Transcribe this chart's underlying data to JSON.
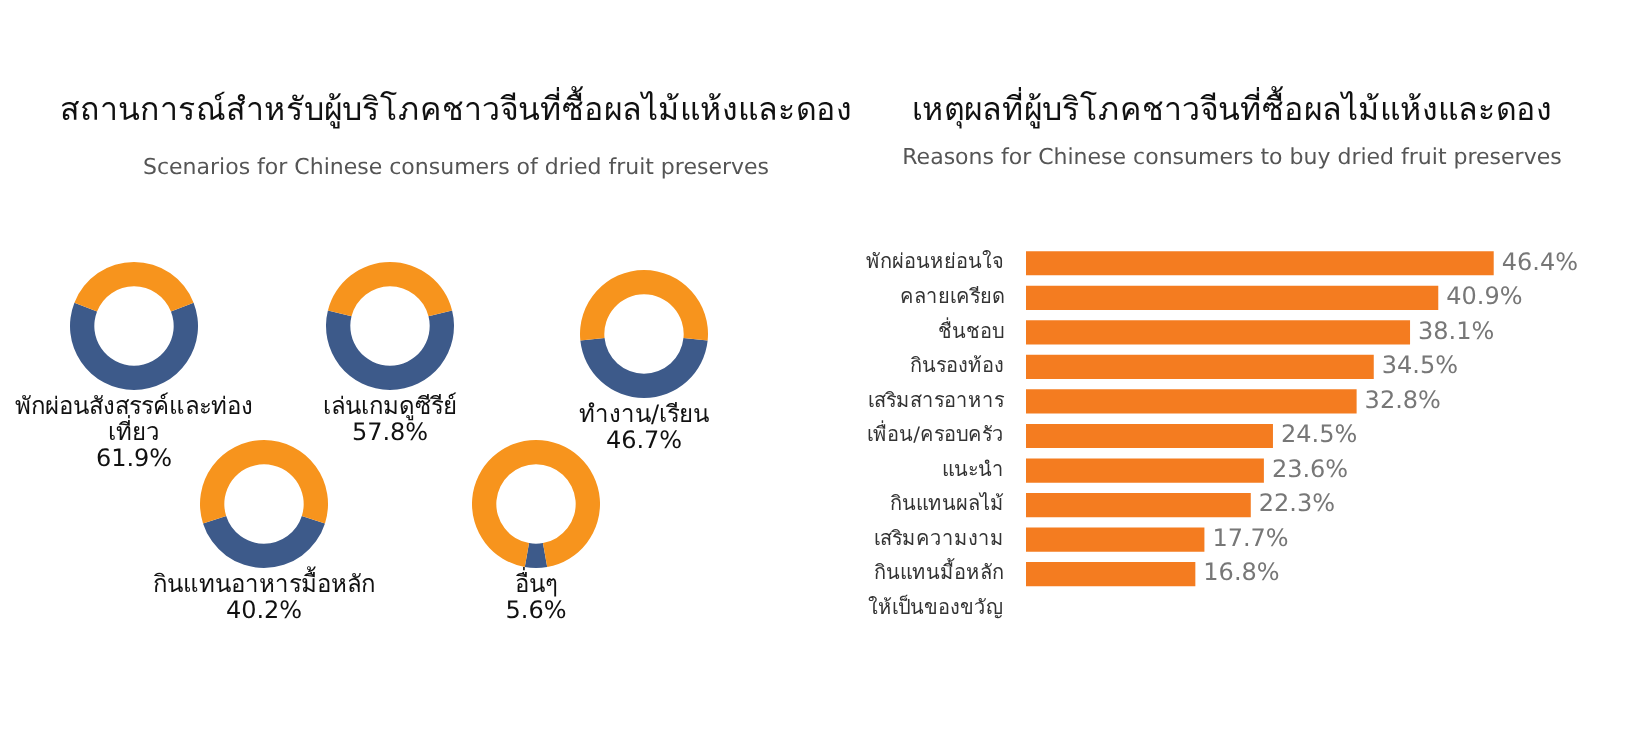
{
  "chart_data": [
    {
      "type": "other",
      "title": "สถานการณ์สำหรับผู้บริโภคชาวจีนที่ซื้อผลไม้แห้งและดอง",
      "subtitle": "Scenarios for Chinese consumers of dried fruit preserves"
    },
    {
      "type": "donut",
      "title": "พักผ่อนสังสรรค์และท่องเที่ยว",
      "categories": [
        null,
        null
      ],
      "values": [
        61.9,
        38.1
      ],
      "colors": [
        "#3d5a8a",
        "#f7941d"
      ],
      "value_labels": [
        "61.9%",
        null
      ]
    },
    {
      "type": "donut",
      "title": "เล่นเกมดูซีรีย์",
      "categories": [
        null,
        null
      ],
      "values": [
        57.8,
        42.2
      ],
      "colors": [
        "#3d5a8a",
        "#f7941d"
      ],
      "value_labels": [
        "57.8%",
        null
      ]
    },
    {
      "type": "donut",
      "title": "ทำงาน/เรียน",
      "categories": [
        null,
        null
      ],
      "values": [
        46.7,
        53.3
      ],
      "colors": [
        "#3d5a8a",
        "#f7941d"
      ],
      "value_labels": [
        "46.7%",
        null
      ]
    },
    {
      "type": "donut",
      "title": "กินแทนอาหารมื้อหลัก",
      "categories": [
        null,
        null
      ],
      "values": [
        40.2,
        59.8
      ],
      "colors": [
        "#3d5a8a",
        "#f7941d"
      ],
      "value_labels": [
        "40.2%",
        null
      ]
    },
    {
      "type": "donut",
      "title": "อื่นๆ",
      "categories": [
        null,
        null
      ],
      "values": [
        5.6,
        94.4
      ],
      "colors": [
        "#3d5a8a",
        "#f7941d"
      ],
      "value_labels": [
        "5.6%",
        null
      ]
    },
    {
      "type": "bar",
      "orientation": "horizontal",
      "title": "เหตุผลที่ผู้บริโภคชาวจีนที่ซื้อผลไม้แห้งและดอง",
      "subtitle": "Reasons for Chinese consumers to buy dried fruit preserves",
      "categories": [
        "พักผ่อนหย่อนใจ",
        "คลายเครียด",
        "ชื่นชอบ",
        "กินรองท้อง",
        "เสริมสารอาหาร",
        "เพื่อน/ครอบครัว",
        "แนะนำ",
        "กินแทนผลไม้",
        "เสริมความงาม",
        "กินแทนมื้อหลัก",
        "ให้เป็นของขวัญ"
      ],
      "values": [
        46.4,
        40.9,
        38.1,
        34.5,
        32.8,
        24.5,
        23.6,
        22.3,
        17.7,
        16.8,
        null
      ],
      "color": "#f47c20",
      "value_labels": [
        "46.4%",
        "40.9%",
        "38.1%",
        "34.5%",
        "32.8%",
        "24.5%",
        "23.6%",
        "22.3%",
        "17.7%",
        "16.8%",
        null
      ]
    }
  ]
}
